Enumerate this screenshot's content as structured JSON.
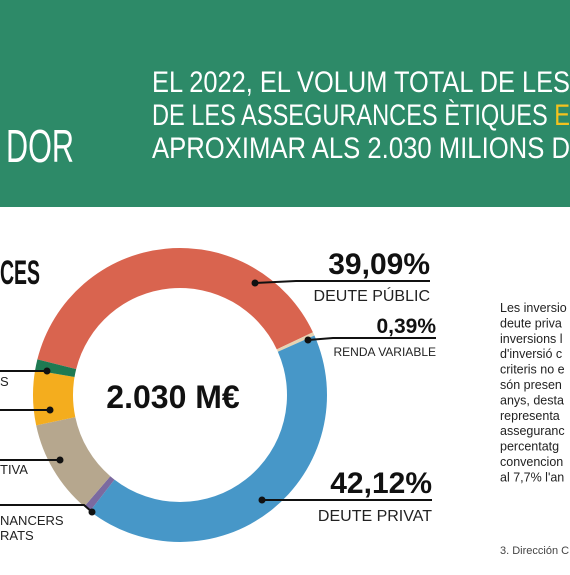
{
  "header": {
    "left_title": "DOR",
    "lines": [
      "EL 2022, EL VOLUM TOTAL DE LES",
      "DE LES ASSEGURANCES ÈTIQUES ",
      "APROXIMAR ALS 2.030 MILIONS D"
    ],
    "highlight": "E"
  },
  "chart_data": {
    "type": "donut",
    "title": "CES",
    "center_label": "2.030 M€",
    "categories": [
      "DEUTE PÚBLIC",
      "RENDA VARIABLE",
      "DEUTE PRIVAT",
      "NANCERS RATS",
      "TIVA",
      null,
      "S"
    ],
    "values": [
      39.09,
      0.39,
      42.12,
      0.8,
      10.4,
      6.0,
      1.2
    ],
    "value_labels": [
      "39,09%",
      "0,39%",
      "42,12%",
      null,
      null,
      null,
      null
    ],
    "colors": [
      "#d9644f",
      "#e6d3b3",
      "#4797c8",
      "#7b6aa0",
      "#b6a78e",
      "#f4ad1e",
      "#1e7a52"
    ]
  },
  "sidebar": {
    "lines": [
      "Les inversio",
      "deute priva",
      "inversions l",
      "d'inversió c",
      "criteris no e",
      "són presen",
      "anys, desta",
      "representa",
      "asseguranc",
      "percentatg",
      "convencion",
      "al 7,7% l'an"
    ],
    "footnote": "3. Dirección C"
  }
}
